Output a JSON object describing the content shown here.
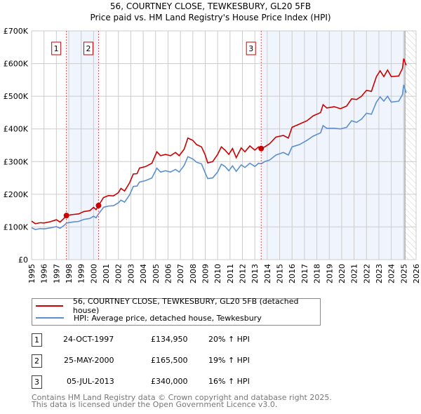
{
  "chart_data": {
    "type": "line",
    "title": "56, COURTNEY CLOSE, TEWKESBURY, GL20 5FB",
    "subtitle": "Price paid vs. HM Land Registry's House Price Index (HPI)",
    "xlim": [
      1995,
      2026
    ],
    "ylim": [
      0,
      700000
    ],
    "x_ticks": [
      "1995",
      "1996",
      "1997",
      "1998",
      "1999",
      "2000",
      "2001",
      "2002",
      "2003",
      "2004",
      "2005",
      "2006",
      "2007",
      "2008",
      "2009",
      "2010",
      "2011",
      "2012",
      "2013",
      "2014",
      "2015",
      "2016",
      "2017",
      "2018",
      "2019",
      "2020",
      "2021",
      "2022",
      "2023",
      "2024",
      "2025",
      "2026"
    ],
    "y_ticks": [
      {
        "v": 0,
        "label": "£0"
      },
      {
        "v": 100000,
        "label": "£100K"
      },
      {
        "v": 200000,
        "label": "£200K"
      },
      {
        "v": 300000,
        "label": "£300K"
      },
      {
        "v": 400000,
        "label": "£400K"
      },
      {
        "v": 500000,
        "label": "£500K"
      },
      {
        "v": 600000,
        "label": "£600K"
      },
      {
        "v": 700000,
        "label": "£700K"
      }
    ],
    "grid": true,
    "forecast_hatch_from": 2025.1,
    "series": [
      {
        "name": "56, COURTNEY CLOSE, TEWKESBURY, GL20 5FB (detached house)",
        "color": "#cc0000",
        "points": [
          [
            1995,
            118
          ],
          [
            1995.3,
            110
          ],
          [
            1995.7,
            113
          ],
          [
            1996,
            112
          ],
          [
            1996.5,
            116
          ],
          [
            1997,
            122
          ],
          [
            1997.3,
            115
          ],
          [
            1997.6,
            126
          ],
          [
            1997.81,
            135
          ],
          [
            1998.3,
            138
          ],
          [
            1998.8,
            140
          ],
          [
            1999.2,
            147
          ],
          [
            1999.7,
            150
          ],
          [
            2000,
            160
          ],
          [
            2000.2,
            153
          ],
          [
            2000.4,
            165.5
          ],
          [
            2000.8,
            190
          ],
          [
            2001.2,
            196
          ],
          [
            2001.6,
            195
          ],
          [
            2002,
            205
          ],
          [
            2002.2,
            218
          ],
          [
            2002.5,
            210
          ],
          [
            2002.9,
            235
          ],
          [
            2003.2,
            262
          ],
          [
            2003.5,
            263
          ],
          [
            2003.7,
            280
          ],
          [
            2004.2,
            285
          ],
          [
            2004.7,
            295
          ],
          [
            2005.1,
            330
          ],
          [
            2005.4,
            318
          ],
          [
            2005.8,
            322
          ],
          [
            2006.2,
            318
          ],
          [
            2006.6,
            328
          ],
          [
            2006.9,
            318
          ],
          [
            2007.3,
            338
          ],
          [
            2007.6,
            372
          ],
          [
            2008,
            365
          ],
          [
            2008.3,
            352
          ],
          [
            2008.7,
            345
          ],
          [
            2009,
            320
          ],
          [
            2009.2,
            296
          ],
          [
            2009.6,
            300
          ],
          [
            2010,
            322
          ],
          [
            2010.3,
            345
          ],
          [
            2010.6,
            335
          ],
          [
            2010.9,
            322
          ],
          [
            2011.2,
            340
          ],
          [
            2011.5,
            312
          ],
          [
            2011.9,
            342
          ],
          [
            2012.2,
            330
          ],
          [
            2012.6,
            348
          ],
          [
            2013,
            335
          ],
          [
            2013.3,
            345
          ],
          [
            2013.51,
            340
          ],
          [
            2013.8,
            345
          ],
          [
            2014.2,
            355
          ],
          [
            2014.7,
            375
          ],
          [
            2015.3,
            380
          ],
          [
            2015.7,
            372
          ],
          [
            2016,
            405
          ],
          [
            2016.6,
            415
          ],
          [
            2017.2,
            425
          ],
          [
            2017.7,
            440
          ],
          [
            2018.3,
            450
          ],
          [
            2018.5,
            474
          ],
          [
            2018.8,
            464
          ],
          [
            2019.4,
            468
          ],
          [
            2019.9,
            462
          ],
          [
            2020.4,
            470
          ],
          [
            2020.8,
            492
          ],
          [
            2021.2,
            490
          ],
          [
            2021.6,
            500
          ],
          [
            2022,
            518
          ],
          [
            2022.4,
            515
          ],
          [
            2022.8,
            560
          ],
          [
            2023.1,
            578
          ],
          [
            2023.4,
            560
          ],
          [
            2023.7,
            580
          ],
          [
            2024,
            560
          ],
          [
            2024.6,
            562
          ],
          [
            2024.9,
            585
          ],
          [
            2025,
            615
          ],
          [
            2025.2,
            595
          ]
        ]
      },
      {
        "name": "HPI: Average price, detached house, Tewkesbury",
        "color": "#5b8fd0",
        "points": [
          [
            1995,
            98
          ],
          [
            1995.3,
            92
          ],
          [
            1995.7,
            95
          ],
          [
            1996,
            94
          ],
          [
            1996.5,
            97
          ],
          [
            1997,
            101
          ],
          [
            1997.3,
            96
          ],
          [
            1997.6,
            104
          ],
          [
            1997.81,
            112
          ],
          [
            1998.3,
            115
          ],
          [
            1998.8,
            117
          ],
          [
            1999.2,
            123
          ],
          [
            1999.7,
            126
          ],
          [
            2000,
            133
          ],
          [
            2000.2,
            128
          ],
          [
            2000.4,
            140
          ],
          [
            2000.8,
            160
          ],
          [
            2001.2,
            164
          ],
          [
            2001.6,
            165
          ],
          [
            2002,
            174
          ],
          [
            2002.2,
            182
          ],
          [
            2002.5,
            176
          ],
          [
            2002.9,
            198
          ],
          [
            2003.2,
            224
          ],
          [
            2003.5,
            225
          ],
          [
            2003.7,
            237
          ],
          [
            2004.2,
            242
          ],
          [
            2004.7,
            250
          ],
          [
            2005.1,
            280
          ],
          [
            2005.4,
            268
          ],
          [
            2005.8,
            272
          ],
          [
            2006.2,
            268
          ],
          [
            2006.6,
            276
          ],
          [
            2006.9,
            268
          ],
          [
            2007.3,
            288
          ],
          [
            2007.6,
            315
          ],
          [
            2008,
            308
          ],
          [
            2008.3,
            298
          ],
          [
            2008.7,
            293
          ],
          [
            2009,
            265
          ],
          [
            2009.2,
            248
          ],
          [
            2009.6,
            250
          ],
          [
            2010,
            268
          ],
          [
            2010.3,
            292
          ],
          [
            2010.6,
            285
          ],
          [
            2010.9,
            272
          ],
          [
            2011.2,
            287
          ],
          [
            2011.5,
            270
          ],
          [
            2011.9,
            290
          ],
          [
            2012.2,
            282
          ],
          [
            2012.6,
            295
          ],
          [
            2013,
            285
          ],
          [
            2013.3,
            295
          ],
          [
            2013.51,
            293
          ],
          [
            2013.8,
            300
          ],
          [
            2014.2,
            305
          ],
          [
            2014.7,
            320
          ],
          [
            2015.3,
            328
          ],
          [
            2015.7,
            320
          ],
          [
            2016,
            345
          ],
          [
            2016.6,
            352
          ],
          [
            2017.2,
            365
          ],
          [
            2017.7,
            378
          ],
          [
            2018.3,
            388
          ],
          [
            2018.5,
            410
          ],
          [
            2018.8,
            402
          ],
          [
            2019.4,
            402
          ],
          [
            2019.9,
            400
          ],
          [
            2020.4,
            405
          ],
          [
            2020.8,
            425
          ],
          [
            2021.2,
            420
          ],
          [
            2021.6,
            430
          ],
          [
            2022,
            448
          ],
          [
            2022.4,
            445
          ],
          [
            2022.8,
            482
          ],
          [
            2023.1,
            498
          ],
          [
            2023.4,
            485
          ],
          [
            2023.7,
            500
          ],
          [
            2024,
            482
          ],
          [
            2024.6,
            485
          ],
          [
            2024.9,
            505
          ],
          [
            2025,
            535
          ],
          [
            2025.2,
            510
          ]
        ]
      }
    ],
    "sales": [
      {
        "n": "1",
        "x": 1997.81,
        "y": 134.95
      },
      {
        "n": "2",
        "x": 2000.4,
        "y": 165.5
      },
      {
        "n": "3",
        "x": 2013.51,
        "y": 340
      }
    ],
    "shaded": [
      [
        1997.81,
        2000.4
      ],
      [
        2013.51,
        2025.1
      ]
    ]
  },
  "legend": [
    "56, COURTNEY CLOSE, TEWKESBURY, GL20 5FB (detached house)",
    "HPI: Average price, detached house, Tewkesbury"
  ],
  "transactions": [
    {
      "n": "1",
      "date": "24-OCT-1997",
      "price": "£134,950",
      "hpi": "20% ↑ HPI"
    },
    {
      "n": "2",
      "date": "25-MAY-2000",
      "price": "£165,500",
      "hpi": "19% ↑ HPI"
    },
    {
      "n": "3",
      "date": "05-JUL-2013",
      "price": "£340,000",
      "hpi": "16% ↑ HPI"
    }
  ],
  "footer": [
    "Contains HM Land Registry data © Crown copyright and database right 2025.",
    "This data is licensed under the Open Government Licence v3.0."
  ]
}
